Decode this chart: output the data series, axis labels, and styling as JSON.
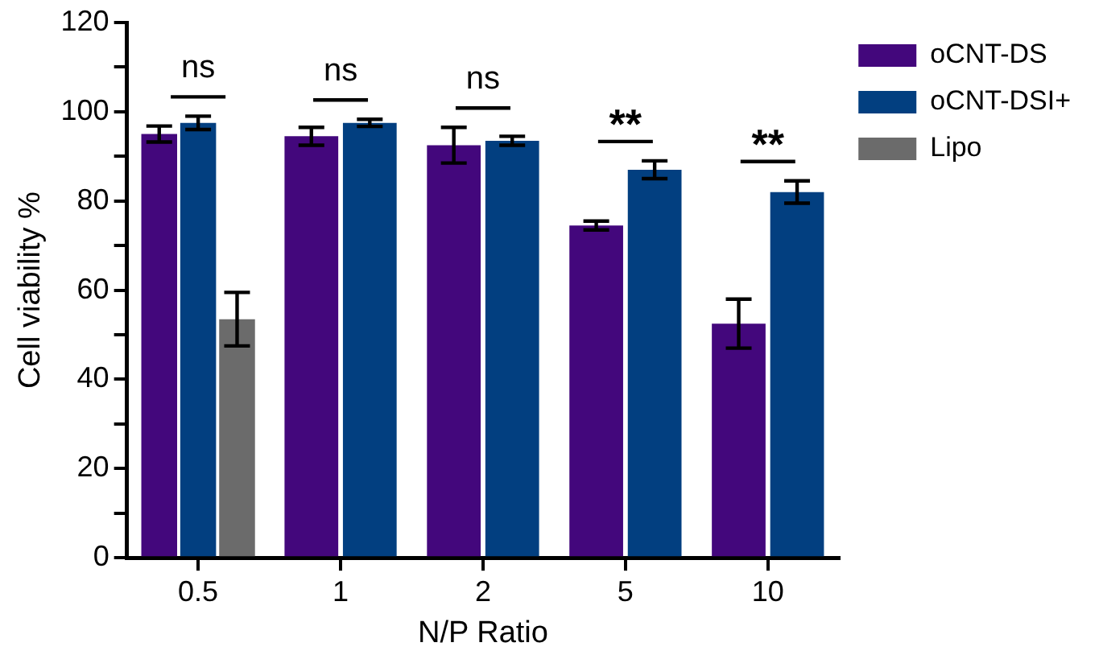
{
  "chart_data": {
    "type": "bar",
    "xlabel": "N/P Ratio",
    "ylabel": "Cell viability %",
    "categories": [
      "0.5",
      "1",
      "2",
      "5",
      "10"
    ],
    "series": [
      {
        "name": "oCNT-DS",
        "color": "#43077c",
        "values": [
          95,
          94.5,
          92.5,
          74.5,
          52.5
        ],
        "errors": [
          1.8,
          2,
          4,
          1,
          5.5
        ]
      },
      {
        "name": "oCNT-DSI+",
        "color": "#023f80",
        "values": [
          97.5,
          97.5,
          93.5,
          87,
          82
        ],
        "errors": [
          1.5,
          0.8,
          1,
          2,
          2.5
        ]
      },
      {
        "name": "Lipo",
        "color": "#6b6b6b",
        "values": [
          53.5,
          null,
          null,
          null,
          null
        ],
        "errors": [
          6,
          null,
          null,
          null,
          null
        ]
      }
    ],
    "ylim": [
      0,
      120
    ],
    "yticks": [
      0,
      {
        "value": 10,
        "label": null
      },
      20,
      {
        "value": 30,
        "label": null
      },
      40,
      {
        "value": 50,
        "label": null
      },
      60,
      {
        "value": 70,
        "label": null
      },
      80,
      {
        "value": 90,
        "label": null
      },
      100,
      {
        "value": 110,
        "label": null
      },
      120
    ],
    "annotations": [
      "ns",
      "ns",
      "ns",
      "**",
      "**"
    ],
    "grid": false,
    "legend": "top right"
  }
}
